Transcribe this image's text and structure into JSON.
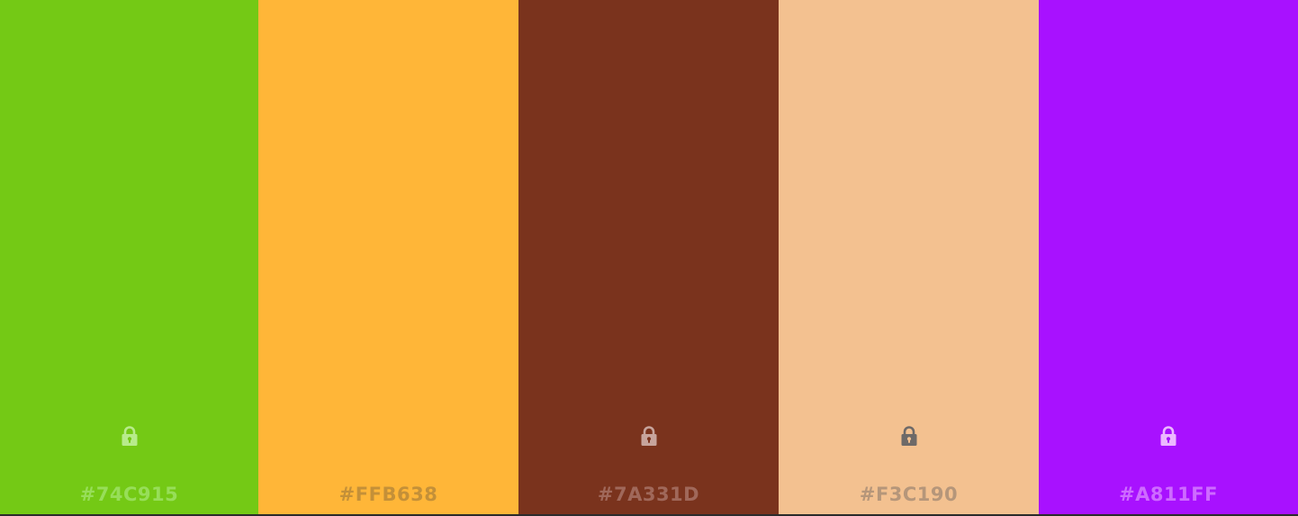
{
  "swatches": [
    {
      "hex_label": "#74C915",
      "background": "#74C915",
      "text_color": "#97DE59",
      "lock_color": "#B7EB8B",
      "lock_visible": true,
      "icon": "lock-icon"
    },
    {
      "hex_label": "#FFB638",
      "background": "#FFB638",
      "text_color": "#C49038",
      "lock_color": "#C49038",
      "lock_visible": false,
      "icon": "lock-icon"
    },
    {
      "hex_label": "#7A331D",
      "background": "#7A331D",
      "text_color": "#A0685A",
      "lock_color": "#C7A49C",
      "lock_visible": true,
      "icon": "lock-icon"
    },
    {
      "hex_label": "#F3C190",
      "background": "#F3C190",
      "text_color": "#B5967A",
      "lock_color": "#6E6A68",
      "lock_visible": true,
      "icon": "lock-icon"
    },
    {
      "hex_label": "#A811FF",
      "background": "#A811FF",
      "text_color": "#CE6BFF",
      "lock_color": "#ECB8FF",
      "lock_visible": true,
      "icon": "lock-icon"
    }
  ]
}
